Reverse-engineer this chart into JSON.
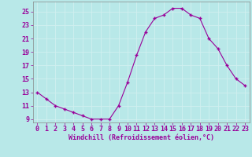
{
  "x": [
    0,
    1,
    2,
    3,
    4,
    5,
    6,
    7,
    8,
    9,
    10,
    11,
    12,
    13,
    14,
    15,
    16,
    17,
    18,
    19,
    20,
    21,
    22,
    23
  ],
  "y": [
    13,
    12,
    11,
    10.5,
    10,
    9.5,
    9,
    9,
    9,
    11,
    14.5,
    18.5,
    22,
    24,
    24.5,
    25.5,
    25.5,
    24.5,
    24,
    21,
    19.5,
    17,
    15,
    14
  ],
  "line_color": "#990099",
  "marker": "+",
  "marker_size": 3.5,
  "background_color": "#b8e8e8",
  "grid_color": "#d0f0f0",
  "xlabel": "Windchill (Refroidissement éolien,°C)",
  "xlabel_color": "#990099",
  "xlabel_fontsize": 6.0,
  "tick_color": "#990099",
  "tick_fontsize": 6.0,
  "ylim": [
    8.5,
    26.5
  ],
  "yticks": [
    9,
    11,
    13,
    15,
    17,
    19,
    21,
    23,
    25
  ],
  "xlim": [
    -0.5,
    23.5
  ],
  "xticks": [
    0,
    1,
    2,
    3,
    4,
    5,
    6,
    7,
    8,
    9,
    10,
    11,
    12,
    13,
    14,
    15,
    16,
    17,
    18,
    19,
    20,
    21,
    22,
    23
  ]
}
